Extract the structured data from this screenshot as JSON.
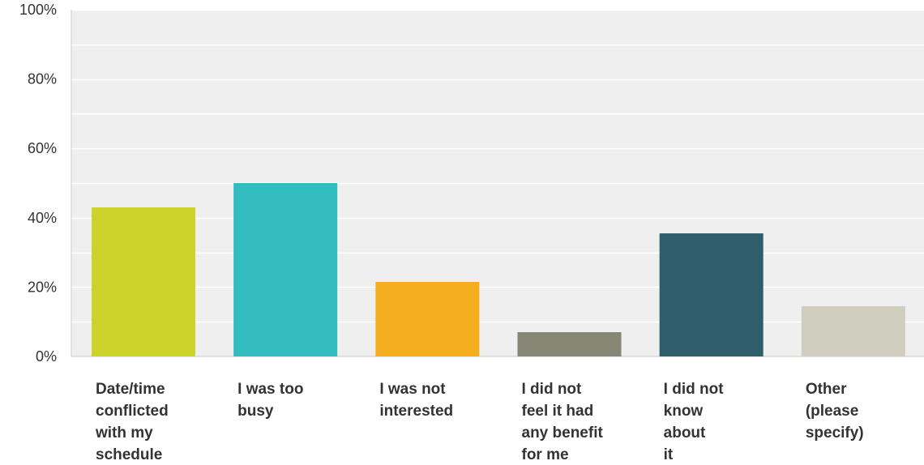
{
  "chart_data": {
    "type": "bar",
    "categories": [
      [
        "Date/time",
        "conflicted",
        "with my",
        "schedule"
      ],
      [
        "I was too",
        "busy"
      ],
      [
        "I was not",
        "interested"
      ],
      [
        "I did not",
        "feel it had",
        "any benefit",
        "for me"
      ],
      [
        "I did not",
        "know",
        "about",
        "it"
      ],
      [
        "Other",
        "(please",
        "specify)"
      ]
    ],
    "values": [
      43,
      50,
      21.5,
      7,
      35.5,
      14.5
    ],
    "bar_colors": [
      "#cdd32b",
      "#33bcbf",
      "#f5ae1f",
      "#858674",
      "#2d5e6a",
      "#cfcdbe"
    ],
    "y_ticks": [
      {
        "value": 0,
        "label": "0%"
      },
      {
        "value": 20,
        "label": "20%"
      },
      {
        "value": 40,
        "label": "40%"
      },
      {
        "value": 60,
        "label": "60%"
      },
      {
        "value": 80,
        "label": "80%"
      },
      {
        "value": 100,
        "label": "100%"
      }
    ],
    "minor_gridlines": [
      10,
      30,
      50,
      70,
      90
    ],
    "ylim": [
      0,
      100
    ],
    "grid": true,
    "legend": "none",
    "background_color": "#efefef",
    "gridline_color": "#ffffff",
    "title": "",
    "xlabel": "",
    "ylabel": ""
  }
}
